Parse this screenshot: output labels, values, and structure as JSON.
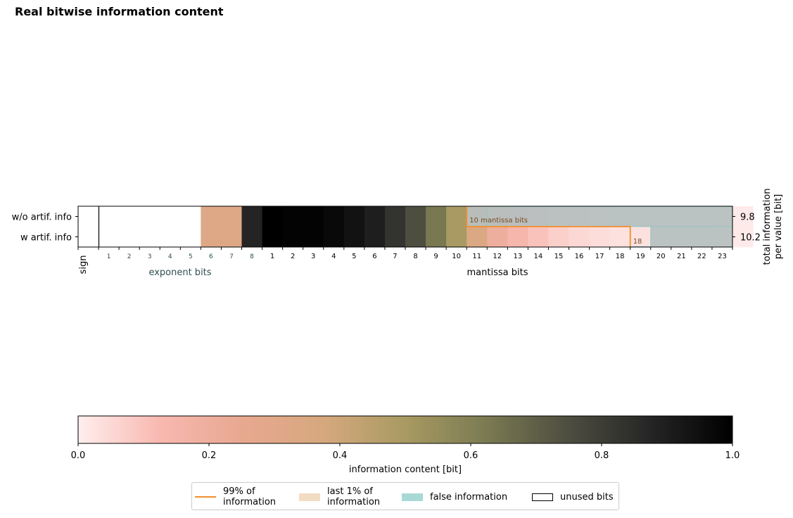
{
  "title": "Real bitwise information content",
  "chart_data": {
    "type": "heatmap",
    "rows": [
      {
        "label": "w/o artif. info",
        "total_information": "9.8",
        "values": [
          0,
          0,
          0,
          0,
          0,
          0,
          0.32,
          0.32,
          0.88,
          1.0,
          0.99,
          0.99,
          0.97,
          0.94,
          0.9,
          0.83,
          0.75,
          0.63,
          0.5,
          0.35,
          0.2,
          0.14,
          0.1,
          0.07,
          0.05,
          0.04,
          0.03,
          0.03,
          0.02,
          0.02,
          0.02,
          0.015,
          0.01
        ]
      },
      {
        "label": "w artif. info",
        "total_information": "10.2",
        "values": [
          0,
          0,
          0,
          0,
          0,
          0,
          0.32,
          0.32,
          0.88,
          1.0,
          0.99,
          0.99,
          0.97,
          0.94,
          0.9,
          0.83,
          0.75,
          0.63,
          0.5,
          0.35,
          0.2,
          0.14,
          0.1,
          0.07,
          0.05,
          0.04,
          0.03,
          0.03,
          0.02,
          0.02,
          0.02,
          0.015,
          0.01
        ]
      }
    ],
    "sign_label": "sign",
    "exponent_label": "exponent bits",
    "mantissa_label": "mantissa bits",
    "exponent_ticks": [
      "1",
      "2",
      "3",
      "4",
      "5",
      "6",
      "7",
      "8"
    ],
    "mantissa_ticks": [
      "1",
      "2",
      "3",
      "4",
      "5",
      "6",
      "7",
      "8",
      "9",
      "10",
      "11",
      "12",
      "13",
      "14",
      "15",
      "16",
      "17",
      "18",
      "19",
      "20",
      "21",
      "22",
      "23"
    ],
    "right_axis_label": "total information\nper value [bit]",
    "annotations": {
      "row1_keepbits_text": "10 mantissa bits",
      "row1_keepbits": 10,
      "row2_keepbits_text": "18",
      "row2_keepbits": 18,
      "row1_false_info_from_mantissa_bit": 11,
      "row2_false_info_from_mantissa_bit": 19,
      "row2_false_info_to_mantissa_bit": 19
    },
    "unused_bits": 1,
    "colorbar": {
      "label": "information content [bit]",
      "range": [
        0,
        1
      ],
      "ticks": [
        "0.0",
        "0.2",
        "0.4",
        "0.6",
        "0.8",
        "1.0"
      ],
      "colors": [
        "#ffeeee",
        "#f8b8b0",
        "#e8a890",
        "#d6a87e",
        "#a89a62",
        "#7a7a52",
        "#4d4d40",
        "#252525",
        "#000000"
      ]
    },
    "legend": [
      {
        "label": "99% of\ninformation",
        "kind": "line",
        "color": "#f28e2b"
      },
      {
        "label": "last 1% of\ninformation",
        "kind": "patch",
        "color": "#f2dcc4"
      },
      {
        "label": "false information",
        "kind": "patch",
        "color": "#a9d9d6"
      },
      {
        "label": "unused bits",
        "kind": "outline",
        "color": "#000000"
      }
    ],
    "grey_overlay_color": "#b5bfbf",
    "keep_line_color": "#f28e2b",
    "false_outline_color": "#8fc7c4"
  }
}
